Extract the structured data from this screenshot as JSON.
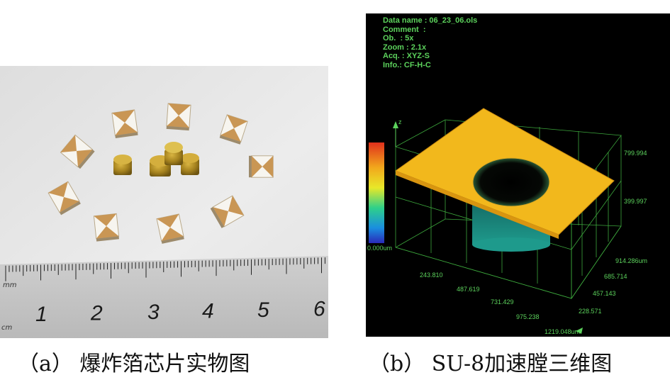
{
  "panel_a": {
    "caption": "（a） 爆炸箔芯片实物图",
    "ruler_numbers": [
      "1",
      "2",
      "3",
      "4",
      "5",
      "6"
    ],
    "ruler_unit_top": "mm",
    "ruler_unit_bottom": "cm"
  },
  "panel_b": {
    "caption": "（b） SU-8加速膛三维图",
    "info": {
      "data_name": "Data name : 06_23_06.ols",
      "comment": "Comment  :",
      "ob": "Ob.  : 5x",
      "zoom": "Zoom : 2.1x",
      "acq": "Acq. : XYZ-S",
      "info": "Info.: CF-H-C"
    },
    "z_axis_label": "z",
    "z_ticks": [
      "799.994",
      "399.997",
      "0.000um"
    ],
    "x_ticks": [
      "243.810",
      "487.619",
      "731.429",
      "975.238",
      "1219.048um"
    ],
    "y_ticks": [
      "914.286um",
      "685.714",
      "457.143",
      "228.571"
    ],
    "colors": {
      "axis_text": "#5cd25c",
      "surface": "#f2b81c",
      "cavity": "#1c8f86",
      "background": "#000000"
    }
  }
}
